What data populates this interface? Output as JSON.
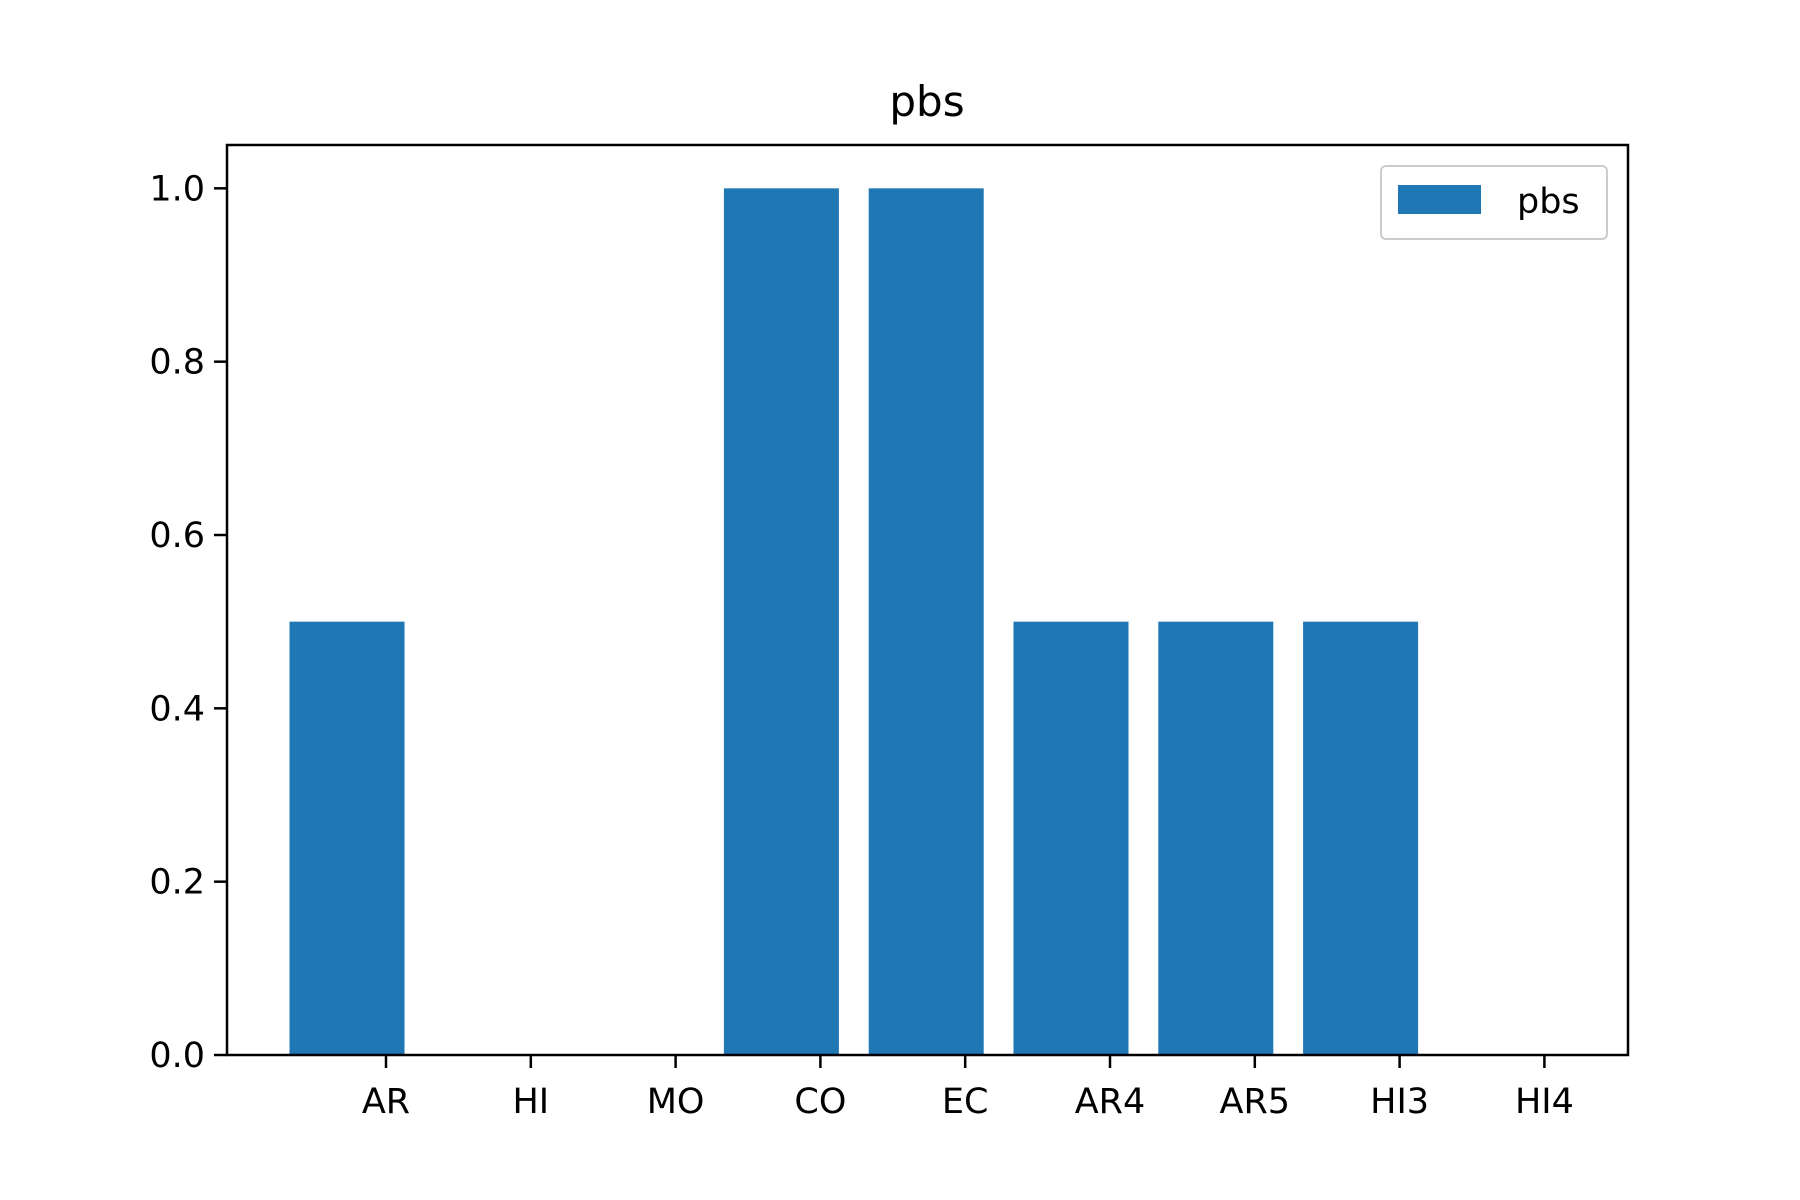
{
  "chart_data": {
    "type": "bar",
    "title": "pbs",
    "xlabel": "",
    "ylabel": "",
    "categories": [
      "AR",
      "HI",
      "MO",
      "CO",
      "EC",
      "AR4",
      "AR5",
      "HI3",
      "HI4"
    ],
    "series": [
      {
        "name": "pbs",
        "values": [
          0.5,
          0.0,
          0.0,
          1.0,
          1.0,
          0.5,
          0.5,
          0.5,
          0.0
        ],
        "color": "#1f77b4"
      }
    ],
    "ylim": [
      0,
      1.05
    ],
    "yticks": [
      0.0,
      0.2,
      0.4,
      0.6,
      0.8,
      1.0
    ],
    "ytick_labels": [
      "0.0",
      "0.2",
      "0.4",
      "0.6",
      "0.8",
      "1.0"
    ],
    "grid": false,
    "legend": "top-right"
  }
}
